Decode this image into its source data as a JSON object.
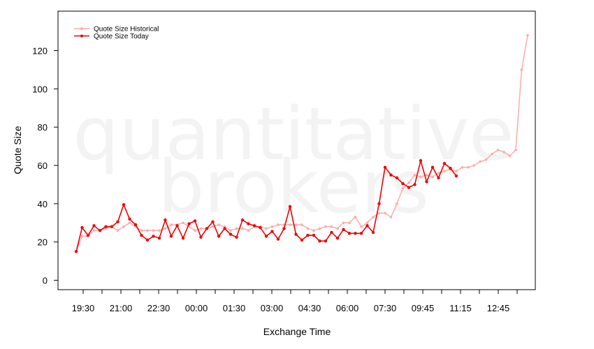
{
  "chart_data": {
    "type": "line",
    "xlabel": "Exchange Time",
    "ylabel": "Quote Size",
    "ylim": [
      -5,
      135
    ],
    "y_ticks": [
      0,
      20,
      40,
      60,
      80,
      100,
      120
    ],
    "x_tick_labels": [
      "19:30",
      "21:00",
      "22:30",
      "00:00",
      "01:30",
      "03:00",
      "04:30",
      "06:00",
      "07:30",
      "09:45",
      "11:15",
      "12:45"
    ],
    "grid": false,
    "legend_position": "top-left",
    "watermark": [
      "quantitative",
      "brokers"
    ],
    "series": [
      {
        "name": "Quote Size Historical",
        "color": "#ffaaaa",
        "values": [
          15,
          23,
          23,
          26,
          26,
          27,
          28,
          26,
          28,
          30,
          28,
          26,
          26,
          26,
          26,
          27,
          29,
          29,
          30,
          28,
          26,
          27,
          27,
          28,
          29,
          28,
          26,
          27,
          27,
          26,
          28,
          28,
          27,
          28,
          29,
          29,
          29,
          29,
          29,
          27,
          26,
          27,
          28,
          28,
          27,
          30,
          30,
          33,
          28,
          30,
          33,
          35,
          35,
          33,
          40,
          48,
          51,
          55,
          54,
          55,
          54,
          56,
          57,
          58,
          57,
          59,
          59,
          60,
          62,
          63,
          66,
          68,
          67,
          65,
          68,
          110,
          128
        ]
      },
      {
        "name": "Quote Size Today",
        "color": "#ee0000",
        "values": [
          15,
          27.5,
          23.5,
          28.5,
          26,
          28,
          28,
          30.5,
          39.5,
          32,
          29,
          23.5,
          21,
          23,
          22,
          31.5,
          23,
          28.5,
          22,
          29.5,
          31,
          22.5,
          27,
          30.5,
          23,
          27,
          24,
          22.5,
          31.5,
          29.5,
          28.5,
          27.5,
          23,
          25.5,
          21.5,
          27,
          38.5,
          24,
          21,
          23.5,
          23.5,
          20.5,
          20.5,
          25,
          22,
          26.5,
          24.5,
          24.5,
          24.5,
          28.5,
          25,
          40,
          59,
          55,
          53.5,
          50.5,
          48.5,
          50,
          62.5,
          51.5,
          59,
          53.5,
          61,
          58.5,
          54.5
        ]
      }
    ]
  }
}
